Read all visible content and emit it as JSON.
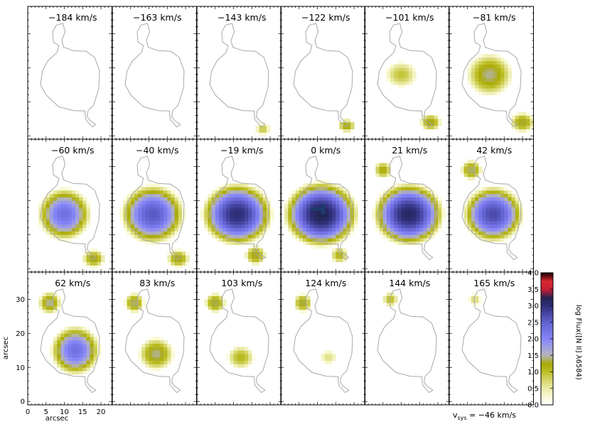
{
  "chart_data": {
    "type": "heatmap",
    "panels": [
      {
        "label": "−184 km/s",
        "blobs": []
      },
      {
        "label": "−163 km/s",
        "blobs": []
      },
      {
        "label": "−143 km/s",
        "blobs": [
          {
            "x": 18,
            "y": 2,
            "rx": 2.0,
            "ry": 1.8,
            "peak": 0.7
          }
        ]
      },
      {
        "label": "−122 km/s",
        "blobs": [
          {
            "x": 18,
            "y": 3,
            "rx": 2.5,
            "ry": 2.0,
            "peak": 1.05
          },
          {
            "x": 13,
            "y": 16,
            "rx": 0.7,
            "ry": 0.7,
            "peak": 0.3
          }
        ]
      },
      {
        "label": "−101 km/s",
        "blobs": [
          {
            "x": 10,
            "y": 18,
            "rx": 4.5,
            "ry": 4.0,
            "peak": 0.7
          },
          {
            "x": 18,
            "y": 4,
            "rx": 3.0,
            "ry": 2.6,
            "peak": 1.1
          }
        ]
      },
      {
        "label": "−81 km/s",
        "blobs": [
          {
            "x": 11,
            "y": 18,
            "rx": 6.5,
            "ry": 6.5,
            "peak": 1.2
          },
          {
            "x": 20,
            "y": 4,
            "rx": 3.5,
            "ry": 3.0,
            "peak": 1.1
          }
        ]
      },
      {
        "label": "−60 km/s",
        "blobs": [
          {
            "x": 10,
            "y": 16,
            "rx": 7.5,
            "ry": 8.0,
            "peak": 2.05
          },
          {
            "x": 18,
            "y": 3,
            "rx": 3.2,
            "ry": 2.8,
            "peak": 1.1
          }
        ]
      },
      {
        "label": "−40 km/s",
        "blobs": [
          {
            "x": 11,
            "y": 16,
            "rx": 9.0,
            "ry": 9.0,
            "peak": 2.35
          },
          {
            "x": 18,
            "y": 3,
            "rx": 3.2,
            "ry": 2.8,
            "peak": 1.1
          }
        ]
      },
      {
        "label": "−19 km/s",
        "blobs": [
          {
            "x": 11,
            "y": 16,
            "rx": 10.0,
            "ry": 9.5,
            "peak": 2.8
          },
          {
            "x": 16,
            "y": 4,
            "rx": 3.0,
            "ry": 3.0,
            "peak": 1.1
          }
        ]
      },
      {
        "label": "0 km/s",
        "blobs": [
          {
            "x": 11,
            "y": 16,
            "rx": 10.5,
            "ry": 10.0,
            "peak": 3.0
          },
          {
            "x": 16,
            "y": 4,
            "rx": 2.5,
            "ry": 2.5,
            "peak": 0.9
          }
        ]
      },
      {
        "label": "21 km/s",
        "blobs": [
          {
            "x": 12,
            "y": 16,
            "rx": 10.0,
            "ry": 9.5,
            "peak": 2.9
          },
          {
            "x": 5,
            "y": 29,
            "rx": 2.6,
            "ry": 2.6,
            "peak": 1.0
          }
        ]
      },
      {
        "label": "42 km/s",
        "blobs": [
          {
            "x": 12,
            "y": 16,
            "rx": 8.5,
            "ry": 8.5,
            "peak": 2.5
          },
          {
            "x": 6,
            "y": 29,
            "rx": 3.0,
            "ry": 3.0,
            "peak": 1.2
          }
        ]
      },
      {
        "label": "62 km/s",
        "blobs": [
          {
            "x": 13,
            "y": 15,
            "rx": 7.0,
            "ry": 7.5,
            "peak": 2.05
          },
          {
            "x": 6,
            "y": 29,
            "rx": 3.2,
            "ry": 3.4,
            "peak": 1.25
          }
        ]
      },
      {
        "label": "83 km/s",
        "blobs": [
          {
            "x": 12,
            "y": 14,
            "rx": 5.0,
            "ry": 5.0,
            "peak": 1.2
          },
          {
            "x": 6,
            "y": 29,
            "rx": 2.8,
            "ry": 3.0,
            "peak": 1.2
          }
        ]
      },
      {
        "label": "103 km/s",
        "blobs": [
          {
            "x": 12,
            "y": 13,
            "rx": 3.8,
            "ry": 3.5,
            "peak": 0.85
          },
          {
            "x": 5,
            "y": 29,
            "rx": 3.0,
            "ry": 3.0,
            "peak": 1.15
          }
        ]
      },
      {
        "label": "124 km/s",
        "blobs": [
          {
            "x": 13,
            "y": 13,
            "rx": 2.4,
            "ry": 2.2,
            "peak": 0.4
          },
          {
            "x": 6,
            "y": 29,
            "rx": 2.6,
            "ry": 2.8,
            "peak": 1.15
          }
        ]
      },
      {
        "label": "144 km/s",
        "blobs": [
          {
            "x": 7,
            "y": 30,
            "rx": 2.2,
            "ry": 2.2,
            "peak": 0.8
          }
        ]
      },
      {
        "label": "165 km/s",
        "blobs": [
          {
            "x": 7,
            "y": 30,
            "rx": 1.8,
            "ry": 1.8,
            "peak": 0.5
          }
        ]
      }
    ],
    "xlabel": "arcsec",
    "ylabel": "arcsec",
    "xlim": [
      0,
      23
    ],
    "ylim": [
      -1,
      38
    ],
    "x_ticks": [
      "0",
      "5",
      "10",
      "15",
      "20"
    ],
    "y_ticks": [
      "0",
      "10",
      "20",
      "30"
    ],
    "colorbar": {
      "label": "log Flux([N II] λ6584)",
      "range": [
        0.0,
        4.0
      ],
      "ticks": [
        "0.0",
        "0.5",
        "1.0",
        "1.5",
        "2.0",
        "2.5",
        "3.0",
        "3.5",
        "4.0"
      ]
    },
    "vsys_label": "v",
    "vsys_sub": "sys",
    "vsys_value": " = −46 km/s"
  }
}
